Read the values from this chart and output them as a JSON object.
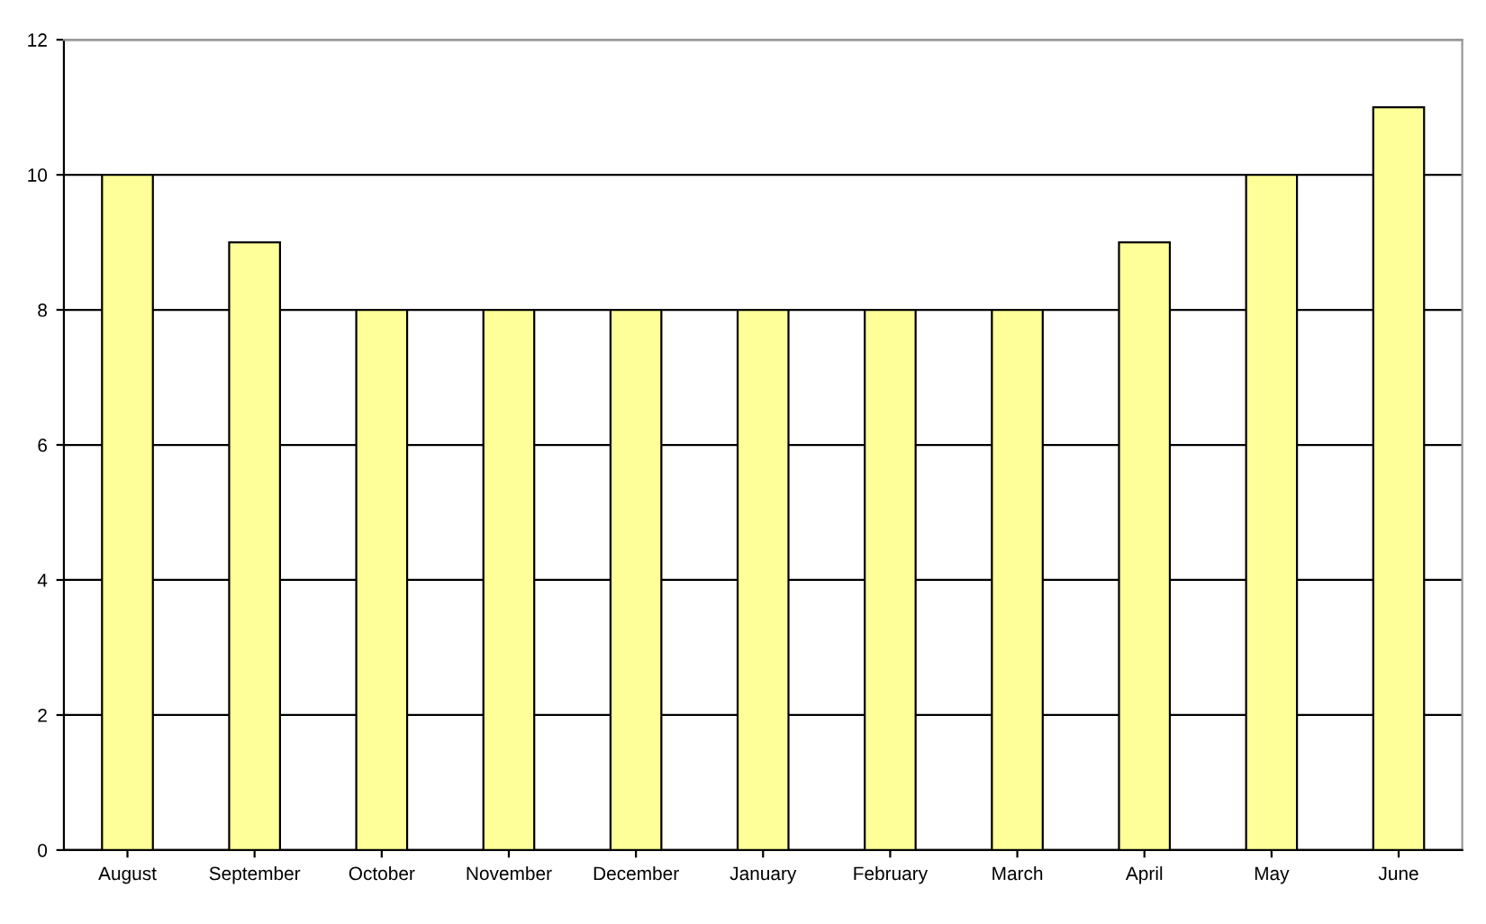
{
  "chart_data": {
    "type": "bar",
    "categories": [
      "August",
      "September",
      "October",
      "November",
      "December",
      "January",
      "February",
      "March",
      "April",
      "May",
      "June"
    ],
    "values": [
      10,
      9,
      8,
      8,
      8,
      8,
      8,
      8,
      9,
      10,
      11
    ],
    "color": "#ffff99",
    "ylim": [
      0,
      12
    ],
    "yticks": [
      0,
      2,
      4,
      6,
      8,
      10,
      12
    ],
    "grid": "y",
    "legend": false
  }
}
